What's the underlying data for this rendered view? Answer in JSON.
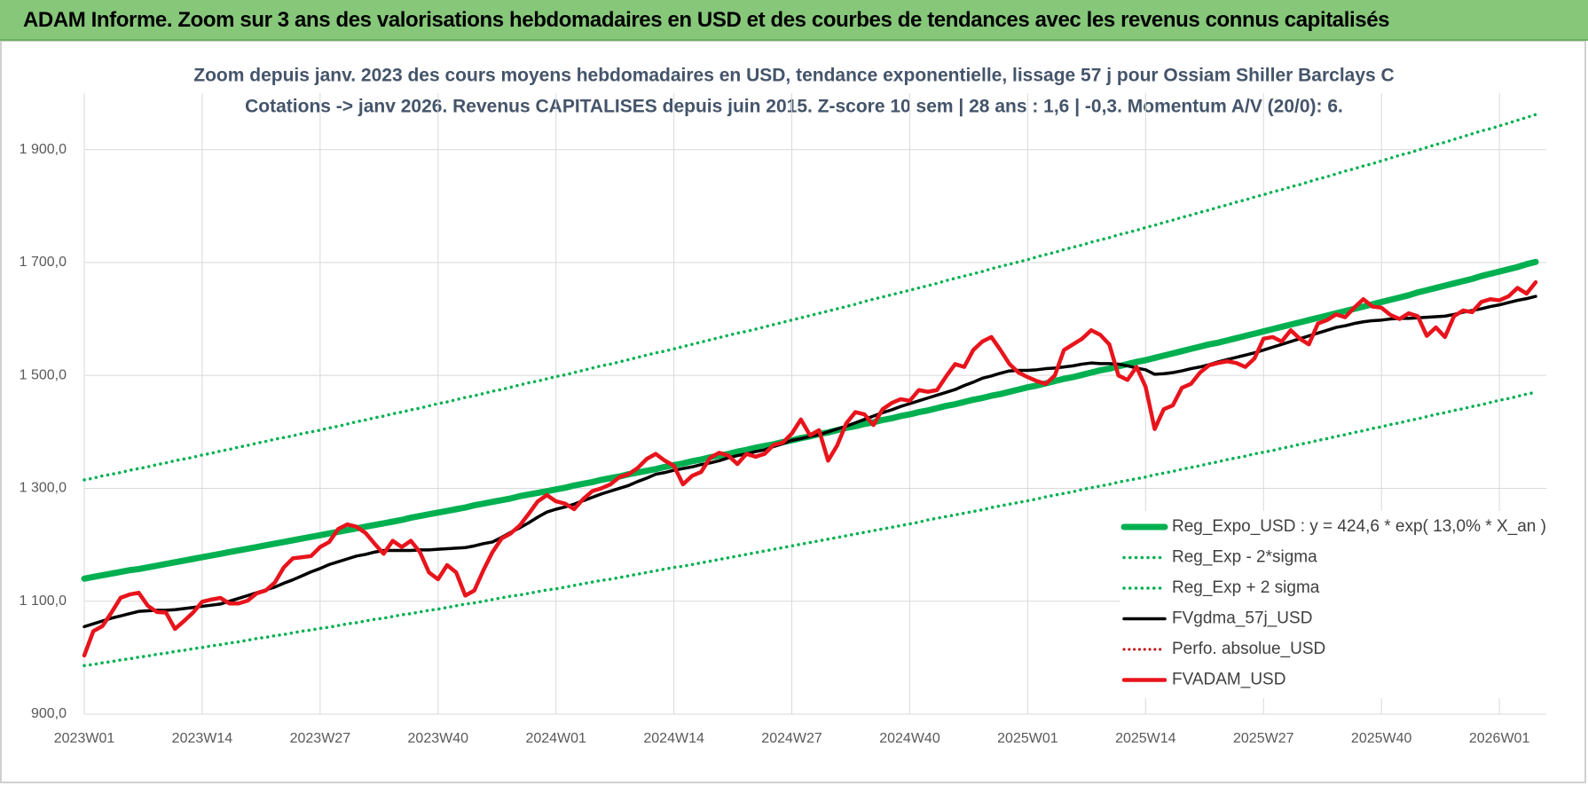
{
  "header": {
    "title": "ADAM Informe. Zoom sur 3 ans des valorisations hebdomadaires en USD et des courbes de tendances avec les revenus connus capitalisés"
  },
  "chart_data": {
    "type": "line",
    "title": "Zoom depuis janv. 2023 des cours moyens hebdomadaires en USD, tendance exponentielle, lissage 57 j pour Ossiam Shiller Barclays C",
    "subtitle": "Cotations -> janv 2026. Revenus CAPITALISES depuis juin 2015. Z-score 10 sem | 28 ans : 1,6 | -0,3. Momentum A/V (20/0): 6.",
    "categories": [
      "2023W01",
      null,
      null,
      null,
      null,
      null,
      null,
      null,
      null,
      null,
      null,
      null,
      null,
      "2023W14",
      null,
      null,
      null,
      null,
      null,
      null,
      null,
      null,
      null,
      null,
      null,
      null,
      "2023W27",
      null,
      null,
      null,
      null,
      null,
      null,
      null,
      null,
      null,
      null,
      null,
      null,
      "2023W40",
      null,
      null,
      null,
      null,
      null,
      null,
      null,
      null,
      null,
      null,
      null,
      null,
      "2024W01",
      null,
      null,
      null,
      null,
      null,
      null,
      null,
      null,
      null,
      null,
      null,
      null,
      "2024W14",
      null,
      null,
      null,
      null,
      null,
      null,
      null,
      null,
      null,
      null,
      null,
      null,
      "2024W27",
      null,
      null,
      null,
      null,
      null,
      null,
      null,
      null,
      null,
      null,
      null,
      null,
      "2024W40",
      null,
      null,
      null,
      null,
      null,
      null,
      null,
      null,
      null,
      null,
      null,
      null,
      "2025W01",
      null,
      null,
      null,
      null,
      null,
      null,
      null,
      null,
      null,
      null,
      null,
      null,
      "2025W14",
      null,
      null,
      null,
      null,
      null,
      null,
      null,
      null,
      null,
      null,
      null,
      null,
      "2025W27",
      null,
      null,
      null,
      null,
      null,
      null,
      null,
      null,
      null,
      null,
      null,
      null,
      "2025W40",
      null,
      null,
      null,
      null,
      null,
      null,
      null,
      null,
      null,
      null,
      null,
      null,
      "2026W01",
      null,
      null,
      null,
      null
    ],
    "ylim": [
      900,
      2000
    ],
    "yticks": [
      {
        "value": 900,
        "label": "900,0"
      },
      {
        "value": 1100,
        "label": "1 100,0"
      },
      {
        "value": 1300,
        "label": "1 300,0"
      },
      {
        "value": 1500,
        "label": "1 500,0"
      },
      {
        "value": 1700,
        "label": "1 700,0"
      },
      {
        "value": 1900,
        "label": "1 900,0"
      }
    ],
    "grid": true,
    "legend": "lower-right",
    "series": [
      {
        "name": "Reg_Expo_USD : y = 424,6 * exp( 13,0% * X_an )",
        "color": "#00b050",
        "style": "solid",
        "width": 7,
        "values": [
          1140,
          1143,
          1146,
          1149,
          1152,
          1155,
          1157,
          1160,
          1163,
          1166,
          1169,
          1172,
          1175,
          1178,
          1181,
          1184,
          1187,
          1190,
          1193,
          1196,
          1199,
          1202,
          1205,
          1208,
          1211,
          1214,
          1217,
          1220,
          1223,
          1226,
          1229,
          1232,
          1235,
          1238,
          1241,
          1244,
          1248,
          1251,
          1254,
          1257,
          1260,
          1263,
          1266,
          1270,
          1273,
          1276,
          1279,
          1282,
          1286,
          1289,
          1292,
          1295,
          1298,
          1301,
          1305,
          1308,
          1311,
          1315,
          1318,
          1321,
          1325,
          1328,
          1331,
          1334,
          1338,
          1341,
          1344,
          1348,
          1351,
          1355,
          1358,
          1361,
          1365,
          1368,
          1372,
          1375,
          1378,
          1382,
          1385,
          1389,
          1392,
          1396,
          1399,
          1403,
          1407,
          1410,
          1414,
          1417,
          1421,
          1424,
          1428,
          1431,
          1435,
          1438,
          1442,
          1446,
          1449,
          1453,
          1457,
          1460,
          1464,
          1467,
          1471,
          1475,
          1479,
          1482,
          1486,
          1490,
          1494,
          1497,
          1501,
          1505,
          1509,
          1512,
          1516,
          1520,
          1524,
          1527,
          1531,
          1535,
          1539,
          1543,
          1547,
          1551,
          1555,
          1558,
          1562,
          1566,
          1570,
          1574,
          1578,
          1582,
          1586,
          1590,
          1594,
          1598,
          1602,
          1606,
          1610,
          1614,
          1618,
          1622,
          1626,
          1630,
          1634,
          1638,
          1642,
          1647,
          1651,
          1655,
          1659,
          1663,
          1667,
          1671,
          1676,
          1680,
          1684,
          1688,
          1692,
          1697,
          1701
        ]
      },
      {
        "name": "Reg_Exp - 2*sigma",
        "color": "#00b050",
        "style": "dotted",
        "width": 3.5,
        "values": [
          986,
          988,
          991,
          993,
          996,
          998,
          1001,
          1003,
          1006,
          1008,
          1011,
          1013,
          1016,
          1018,
          1021,
          1023,
          1026,
          1028,
          1031,
          1034,
          1036,
          1039,
          1041,
          1044,
          1047,
          1049,
          1052,
          1054,
          1057,
          1060,
          1062,
          1065,
          1068,
          1070,
          1073,
          1076,
          1078,
          1081,
          1084,
          1086,
          1089,
          1092,
          1095,
          1097,
          1100,
          1103,
          1106,
          1109,
          1111,
          1114,
          1117,
          1120,
          1122,
          1125,
          1128,
          1131,
          1134,
          1137,
          1139,
          1142,
          1145,
          1148,
          1151,
          1154,
          1157,
          1160,
          1162,
          1165,
          1168,
          1171,
          1174,
          1177,
          1180,
          1183,
          1186,
          1189,
          1192,
          1195,
          1198,
          1201,
          1204,
          1207,
          1210,
          1213,
          1216,
          1219,
          1222,
          1225,
          1228,
          1231,
          1234,
          1237,
          1240,
          1244,
          1247,
          1250,
          1253,
          1256,
          1259,
          1262,
          1266,
          1269,
          1272,
          1275,
          1278,
          1281,
          1285,
          1288,
          1291,
          1294,
          1298,
          1301,
          1304,
          1307,
          1311,
          1314,
          1317,
          1320,
          1324,
          1327,
          1330,
          1334,
          1337,
          1340,
          1344,
          1347,
          1351,
          1354,
          1357,
          1361,
          1364,
          1367,
          1371,
          1374,
          1378,
          1381,
          1385,
          1388,
          1392,
          1395,
          1399,
          1402,
          1406,
          1409,
          1413,
          1416,
          1420,
          1423,
          1427,
          1431,
          1434,
          1438,
          1441,
          1445,
          1448,
          1452,
          1456,
          1459,
          1463,
          1467,
          1470
        ]
      },
      {
        "name": "Reg_Exp + 2 sigma",
        "color": "#00b050",
        "style": "dotted",
        "width": 3.5,
        "values": [
          1315,
          1318,
          1322,
          1325,
          1328,
          1332,
          1335,
          1338,
          1342,
          1345,
          1349,
          1352,
          1355,
          1359,
          1362,
          1366,
          1369,
          1373,
          1376,
          1380,
          1383,
          1387,
          1390,
          1393,
          1397,
          1400,
          1403,
          1407,
          1410,
          1414,
          1418,
          1421,
          1425,
          1428,
          1432,
          1435,
          1439,
          1442,
          1446,
          1450,
          1453,
          1457,
          1461,
          1464,
          1468,
          1472,
          1475,
          1479,
          1483,
          1487,
          1490,
          1494,
          1498,
          1501,
          1505,
          1509,
          1513,
          1517,
          1520,
          1524,
          1528,
          1532,
          1536,
          1540,
          1543,
          1547,
          1551,
          1555,
          1559,
          1563,
          1567,
          1571,
          1575,
          1578,
          1582,
          1586,
          1590,
          1594,
          1598,
          1602,
          1606,
          1610,
          1614,
          1618,
          1622,
          1626,
          1631,
          1635,
          1639,
          1643,
          1647,
          1651,
          1655,
          1659,
          1663,
          1668,
          1672,
          1676,
          1680,
          1684,
          1689,
          1693,
          1697,
          1701,
          1705,
          1710,
          1714,
          1718,
          1723,
          1727,
          1731,
          1736,
          1740,
          1744,
          1749,
          1753,
          1757,
          1762,
          1766,
          1771,
          1775,
          1780,
          1784,
          1789,
          1793,
          1798,
          1802,
          1807,
          1811,
          1816,
          1820,
          1825,
          1829,
          1834,
          1838,
          1843,
          1848,
          1852,
          1857,
          1862,
          1866,
          1871,
          1875,
          1880,
          1885,
          1890,
          1894,
          1899,
          1904,
          1909,
          1913,
          1918,
          1923,
          1928,
          1933,
          1937,
          1942,
          1947,
          1952,
          1957,
          1962
        ]
      },
      {
        "name": "FVgdma_57j_USD",
        "color": "#000000",
        "style": "solid",
        "width": 3.5,
        "values": [
          1055,
          1060,
          1065,
          1070,
          1074,
          1078,
          1082,
          1083,
          1084,
          1084,
          1085,
          1087,
          1089,
          1091,
          1093,
          1095,
          1100,
          1105,
          1110,
          1115,
          1120,
          1125,
          1132,
          1138,
          1145,
          1152,
          1158,
          1165,
          1170,
          1175,
          1180,
          1183,
          1187,
          1190,
          1190,
          1190,
          1190,
          1191,
          1191,
          1192,
          1193,
          1194,
          1195,
          1198,
          1202,
          1205,
          1213,
          1222,
          1230,
          1239,
          1249,
          1258,
          1263,
          1267,
          1272,
          1278,
          1284,
          1290,
          1295,
          1300,
          1305,
          1312,
          1318,
          1325,
          1328,
          1332,
          1335,
          1338,
          1342,
          1345,
          1349,
          1354,
          1358,
          1361,
          1365,
          1368,
          1374,
          1379,
          1385,
          1388,
          1392,
          1395,
          1400,
          1405,
          1410,
          1416,
          1422,
          1428,
          1434,
          1439,
          1445,
          1450,
          1455,
          1460,
          1465,
          1470,
          1475,
          1482,
          1488,
          1495,
          1499,
          1504,
          1508,
          1509,
          1509,
          1510,
          1512,
          1513,
          1515,
          1517,
          1520,
          1522,
          1521,
          1521,
          1520,
          1517,
          1513,
          1510,
          1502,
          1503,
          1505,
          1508,
          1512,
          1515,
          1519,
          1524,
          1528,
          1532,
          1536,
          1540,
          1545,
          1550,
          1555,
          1560,
          1565,
          1570,
          1575,
          1580,
          1585,
          1588,
          1592,
          1595,
          1597,
          1598,
          1600,
          1601,
          1601,
          1602,
          1603,
          1604,
          1605,
          1608,
          1612,
          1615,
          1618,
          1622,
          1625,
          1629,
          1633,
          1636,
          1640
        ]
      },
      {
        "name": "Perfo. absolue_USD",
        "color": "#c00000",
        "style": "dotted",
        "width": 3
      },
      {
        "name": "FVADAM_USD",
        "color": "#e8141c",
        "style": "solid",
        "width": 4.5,
        "values": [
          1004,
          1047,
          1056,
          1080,
          1106,
          1112,
          1115,
          1092,
          1081,
          1080,
          1051,
          1065,
          1080,
          1099,
          1103,
          1106,
          1096,
          1096,
          1101,
          1114,
          1119,
          1133,
          1160,
          1176,
          1178,
          1180,
          1196,
          1205,
          1228,
          1236,
          1232,
          1221,
          1202,
          1184,
          1207,
          1196,
          1207,
          1187,
          1151,
          1139,
          1164,
          1151,
          1110,
          1119,
          1155,
          1187,
          1211,
          1220,
          1234,
          1255,
          1277,
          1288,
          1277,
          1273,
          1263,
          1281,
          1295,
          1300,
          1307,
          1320,
          1325,
          1336,
          1352,
          1361,
          1349,
          1340,
          1307,
          1322,
          1329,
          1354,
          1363,
          1358,
          1343,
          1361,
          1356,
          1361,
          1377,
          1381,
          1397,
          1422,
          1394,
          1403,
          1349,
          1376,
          1415,
          1435,
          1431,
          1412,
          1440,
          1451,
          1458,
          1455,
          1474,
          1471,
          1474,
          1498,
          1520,
          1515,
          1545,
          1560,
          1568,
          1545,
          1520,
          1505,
          1497,
          1490,
          1485,
          1500,
          1545,
          1555,
          1565,
          1580,
          1572,
          1555,
          1500,
          1492,
          1515,
          1480,
          1405,
          1440,
          1447,
          1478,
          1485,
          1505,
          1518,
          1522,
          1525,
          1522,
          1515,
          1530,
          1565,
          1568,
          1560,
          1580,
          1565,
          1555,
          1592,
          1598,
          1608,
          1603,
          1620,
          1635,
          1622,
          1620,
          1607,
          1600,
          1610,
          1605,
          1570,
          1585,
          1568,
          1605,
          1615,
          1612,
          1630,
          1635,
          1633,
          1640,
          1655,
          1645,
          1665
        ]
      }
    ]
  }
}
